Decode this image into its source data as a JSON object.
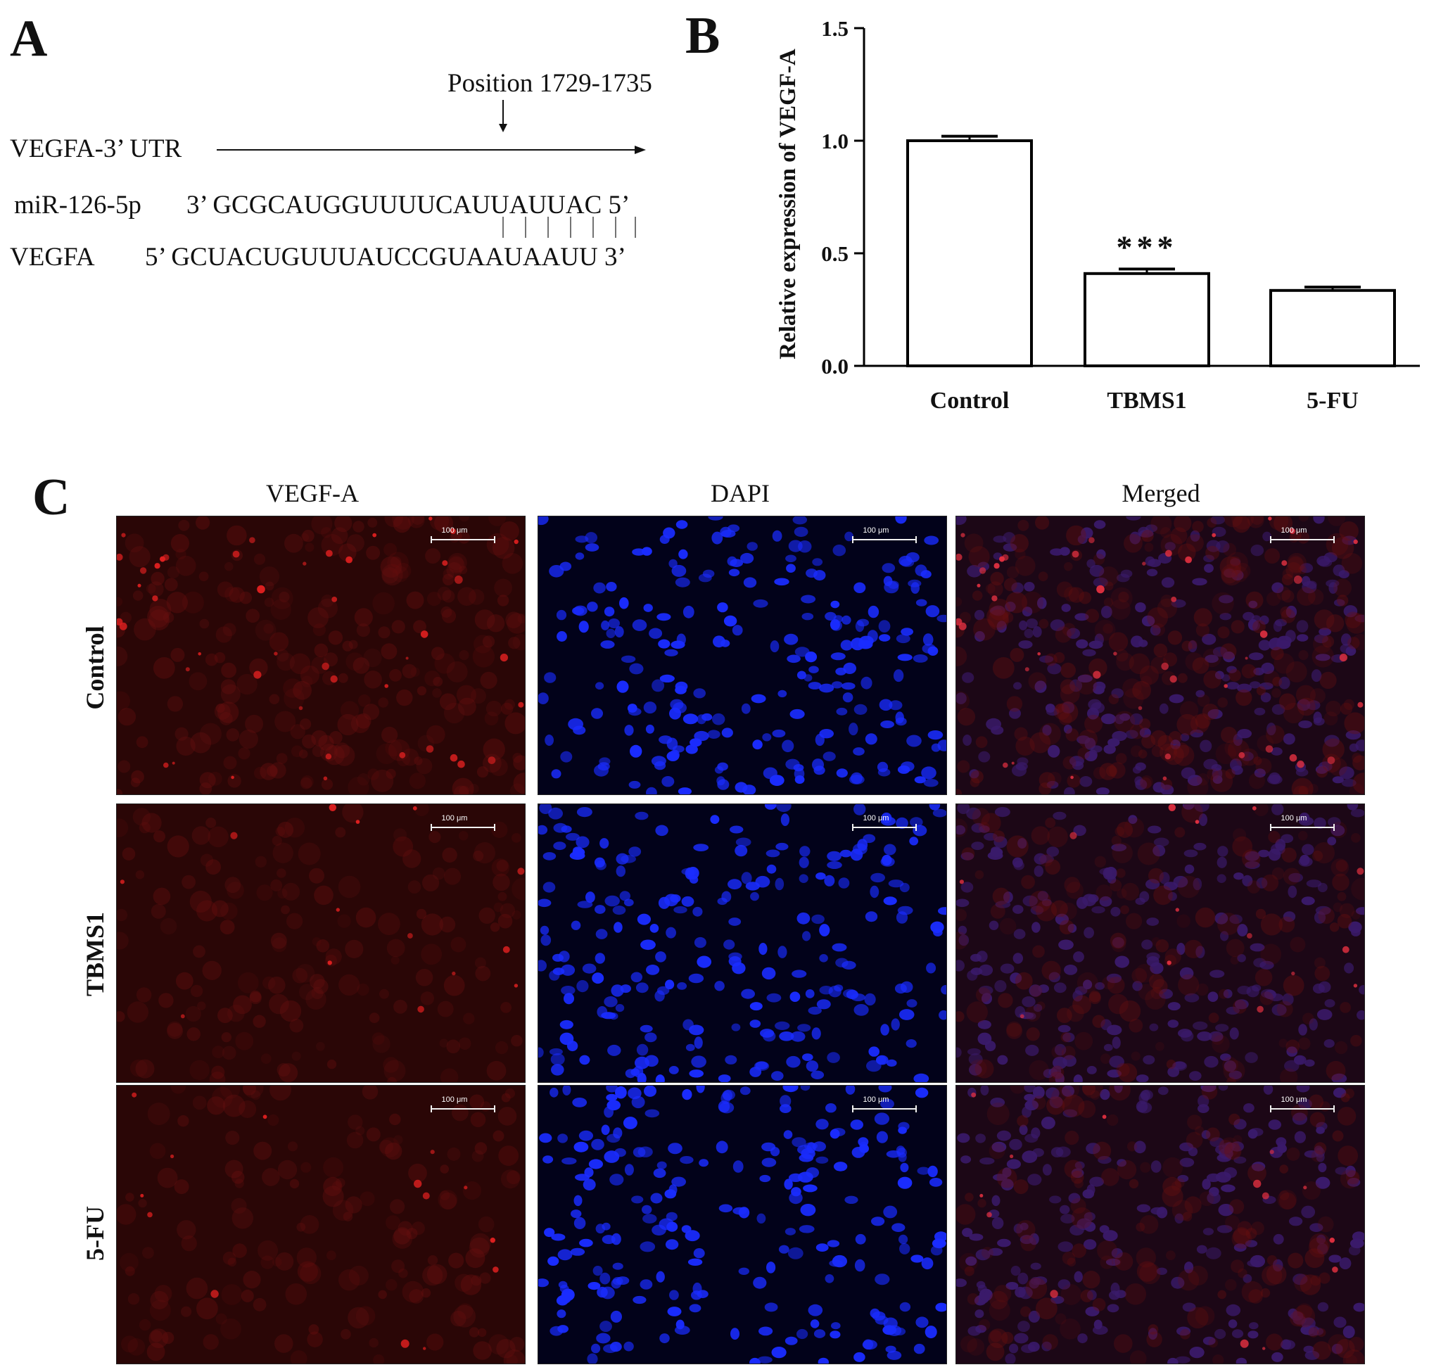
{
  "panel_a": {
    "letter": "A",
    "position_label": "Position 1729-1735",
    "utr_label": "VEGFA-3’ UTR",
    "mirna_name": "miR-126-5p",
    "mirna_sequence": "3’ GCGCAUGGUUUUCAUUAUUAC 5’",
    "target_name": "VEGFA",
    "target_sequence": "5’ GCUACUGUUUAUCCGUAAUAAUU 3’"
  },
  "panel_b": {
    "letter": "B",
    "significance": "***"
  },
  "chart_data": {
    "type": "bar",
    "categories": [
      "Control",
      "TBMS1",
      "5-FU"
    ],
    "values": [
      1.0,
      0.41,
      0.335
    ],
    "errors": [
      0.02,
      0.02,
      0.015
    ],
    "ylabel": "Relative expression of VEGF-A",
    "ylim": [
      0,
      1.5
    ],
    "yticks": [
      "0.0",
      "0.5",
      "1.0",
      "1.5"
    ],
    "ytick_values": [
      0,
      0.5,
      1.0,
      1.5
    ],
    "annotations": [
      {
        "category": "TBMS1",
        "text": "***"
      }
    ],
    "bar_fill": "#ffffff",
    "bar_edge": "#000000"
  },
  "panel_c": {
    "letter": "C",
    "columns": [
      "VEGF-A",
      "DAPI",
      "Merged"
    ],
    "rows": [
      "Control",
      "TBMS1",
      "5-FU"
    ],
    "scale_label": "100 μm",
    "colors": {
      "vegf_bg": "#2a0606",
      "vegf_spot": "#e02020",
      "dapi_bg": "#02021a",
      "dapi_nucleus": "#1a2cff",
      "merged_bg": "#1c0716",
      "merged_nucleus": "#3a1a6a",
      "merged_spot": "#e03040"
    }
  }
}
